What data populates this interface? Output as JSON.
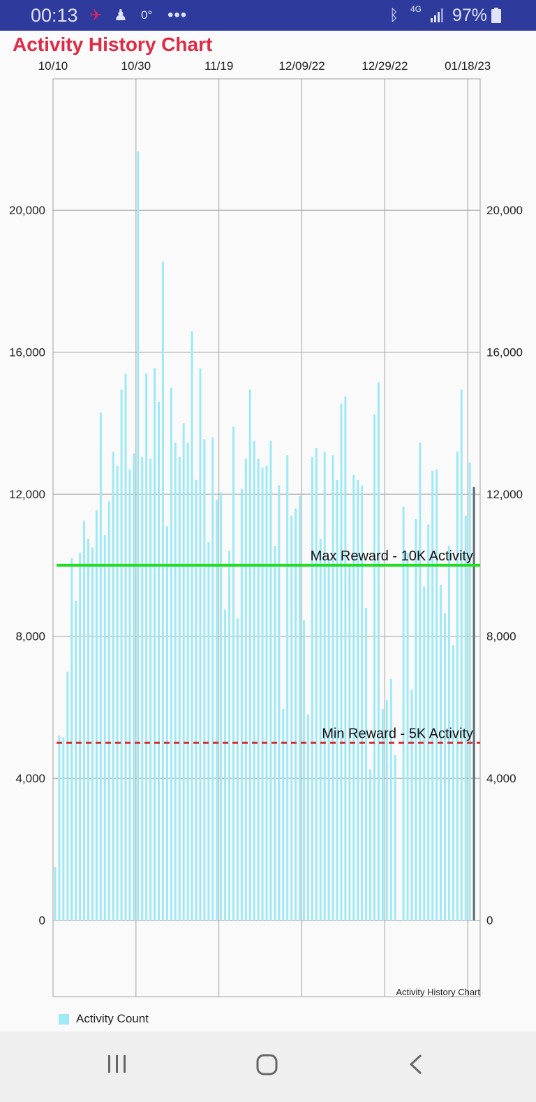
{
  "status_bar": {
    "time": "00:13",
    "temperature": "0°",
    "more": "•••",
    "network": "4G",
    "battery": "97%",
    "icons": [
      "activity-run-icon",
      "figure-icon",
      "bluetooth-icon",
      "signal-icon",
      "battery-icon"
    ]
  },
  "app": {
    "title": "Activity History Chart",
    "title_color": "#e02a45"
  },
  "chart_data": {
    "type": "bar",
    "title": "Activity History Chart",
    "description_label": "Activity History Chart",
    "x_tick_labels": [
      "10/10",
      "10/30",
      "11/19",
      "12/09/22",
      "12/29/22",
      "01/18/23"
    ],
    "x_range": [
      "2022-10-10",
      "2023-01-21"
    ],
    "x_tick_dates": [
      "2022-10-10",
      "2022-10-30",
      "2022-11-19",
      "2022-12-09",
      "2022-12-29",
      "2023-01-18"
    ],
    "y_ticks": [
      0,
      4000,
      8000,
      12000,
      16000,
      20000
    ],
    "y_tick_labels": [
      "0",
      "4,000",
      "8,000",
      "12,000",
      "16,000",
      "20,000"
    ],
    "ylim": [
      -2150,
      23700
    ],
    "dual_y_axis": true,
    "grid": true,
    "legend_position": "bottom-left",
    "bar_color": "#9ee9f6",
    "series": [
      {
        "name": "Activity Count",
        "values": [
          1500,
          5200,
          5150,
          7000,
          10200,
          9000,
          10350,
          11250,
          10750,
          10500,
          11550,
          14300,
          10850,
          11800,
          13200,
          12800,
          14950,
          15400,
          12700,
          13150,
          21650,
          13050,
          15400,
          13000,
          15550,
          14600,
          18550,
          11100,
          15000,
          13450,
          13050,
          14000,
          13450,
          16600,
          12400,
          15550,
          13550,
          10650,
          13600,
          11850,
          12050,
          8750,
          10400,
          13900,
          8500,
          12150,
          13000,
          14950,
          13500,
          13000,
          12750,
          12800,
          13500,
          10550,
          12250,
          5950,
          13100,
          11400,
          11600,
          11950,
          8450,
          5800,
          13050,
          13300,
          10750,
          13200,
          10150,
          13100,
          12400,
          14550,
          14750,
          10050,
          12550,
          12400,
          12250,
          8800,
          4250,
          14250,
          15150,
          5950,
          6200,
          6800,
          4650,
          0,
          11650,
          10350,
          6500,
          11300,
          13450,
          9400,
          11150,
          12650,
          12700,
          9450,
          8650,
          10550,
          7750,
          13200,
          14950,
          11400,
          12900,
          12200
        ]
      }
    ],
    "reference_lines": [
      {
        "label": "Max Reward - 10K Activity",
        "value": 10000,
        "color": "#22dd22",
        "style": "solid"
      },
      {
        "label": "Min Reward - 5K Activity",
        "value": 5000,
        "color": "#d32f2f",
        "style": "dashed"
      }
    ]
  },
  "legend": {
    "label": "Activity Count"
  },
  "nav_bar": {
    "buttons": [
      "recents-button",
      "home-button",
      "back-button"
    ]
  }
}
